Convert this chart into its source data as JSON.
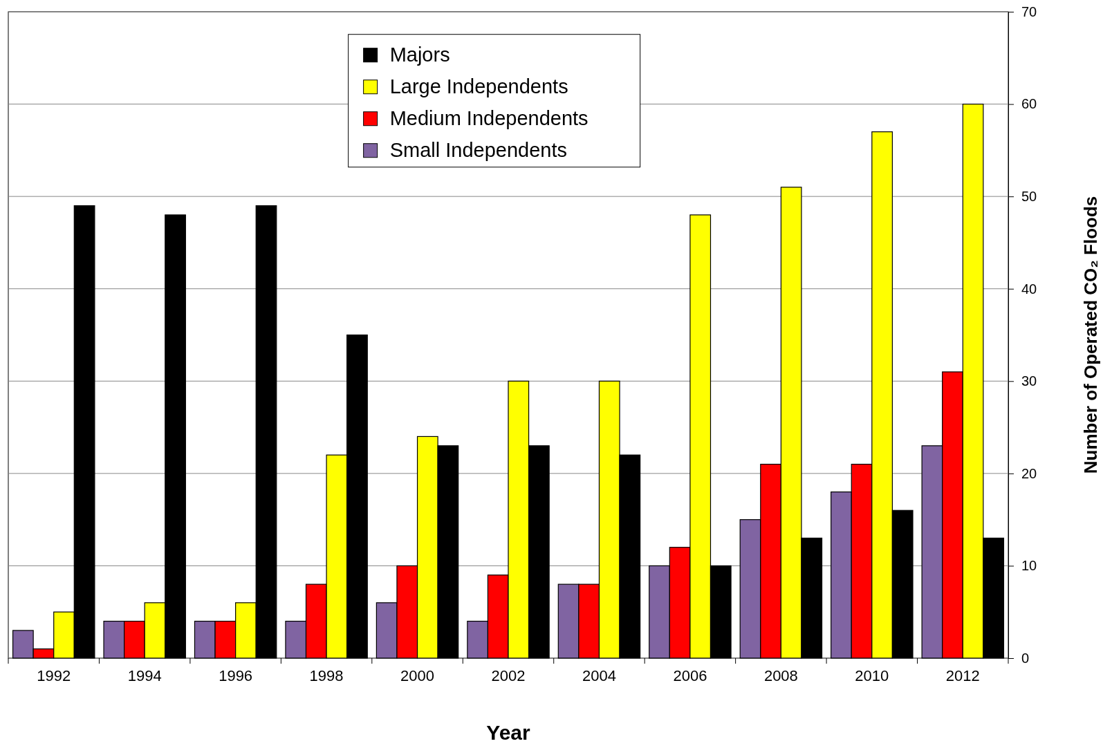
{
  "chart_data": {
    "type": "bar",
    "xlabel": "Year",
    "ylabel": "Number of Operated CO₂ Floods",
    "categories": [
      "1992",
      "1994",
      "1996",
      "1998",
      "2000",
      "2002",
      "2004",
      "2006",
      "2008",
      "2010",
      "2012"
    ],
    "series": [
      {
        "name": "Small Independents",
        "color": "#8064a2",
        "values": [
          3,
          4,
          4,
          4,
          6,
          4,
          8,
          10,
          15,
          18,
          23
        ]
      },
      {
        "name": "Medium Independents",
        "color": "#ff0000",
        "values": [
          1,
          4,
          4,
          8,
          10,
          9,
          8,
          12,
          21,
          21,
          31
        ]
      },
      {
        "name": "Large Independents",
        "color": "#ffff00",
        "values": [
          5,
          6,
          6,
          22,
          24,
          30,
          30,
          48,
          51,
          57,
          60
        ]
      },
      {
        "name": "Majors",
        "color": "#000000",
        "values": [
          49,
          48,
          49,
          35,
          23,
          23,
          22,
          10,
          13,
          16,
          13
        ]
      }
    ],
    "ylim": [
      0,
      70
    ],
    "yticks": [
      0,
      10,
      20,
      30,
      40,
      50,
      60,
      70
    ],
    "grid": "y",
    "legend": "top"
  }
}
